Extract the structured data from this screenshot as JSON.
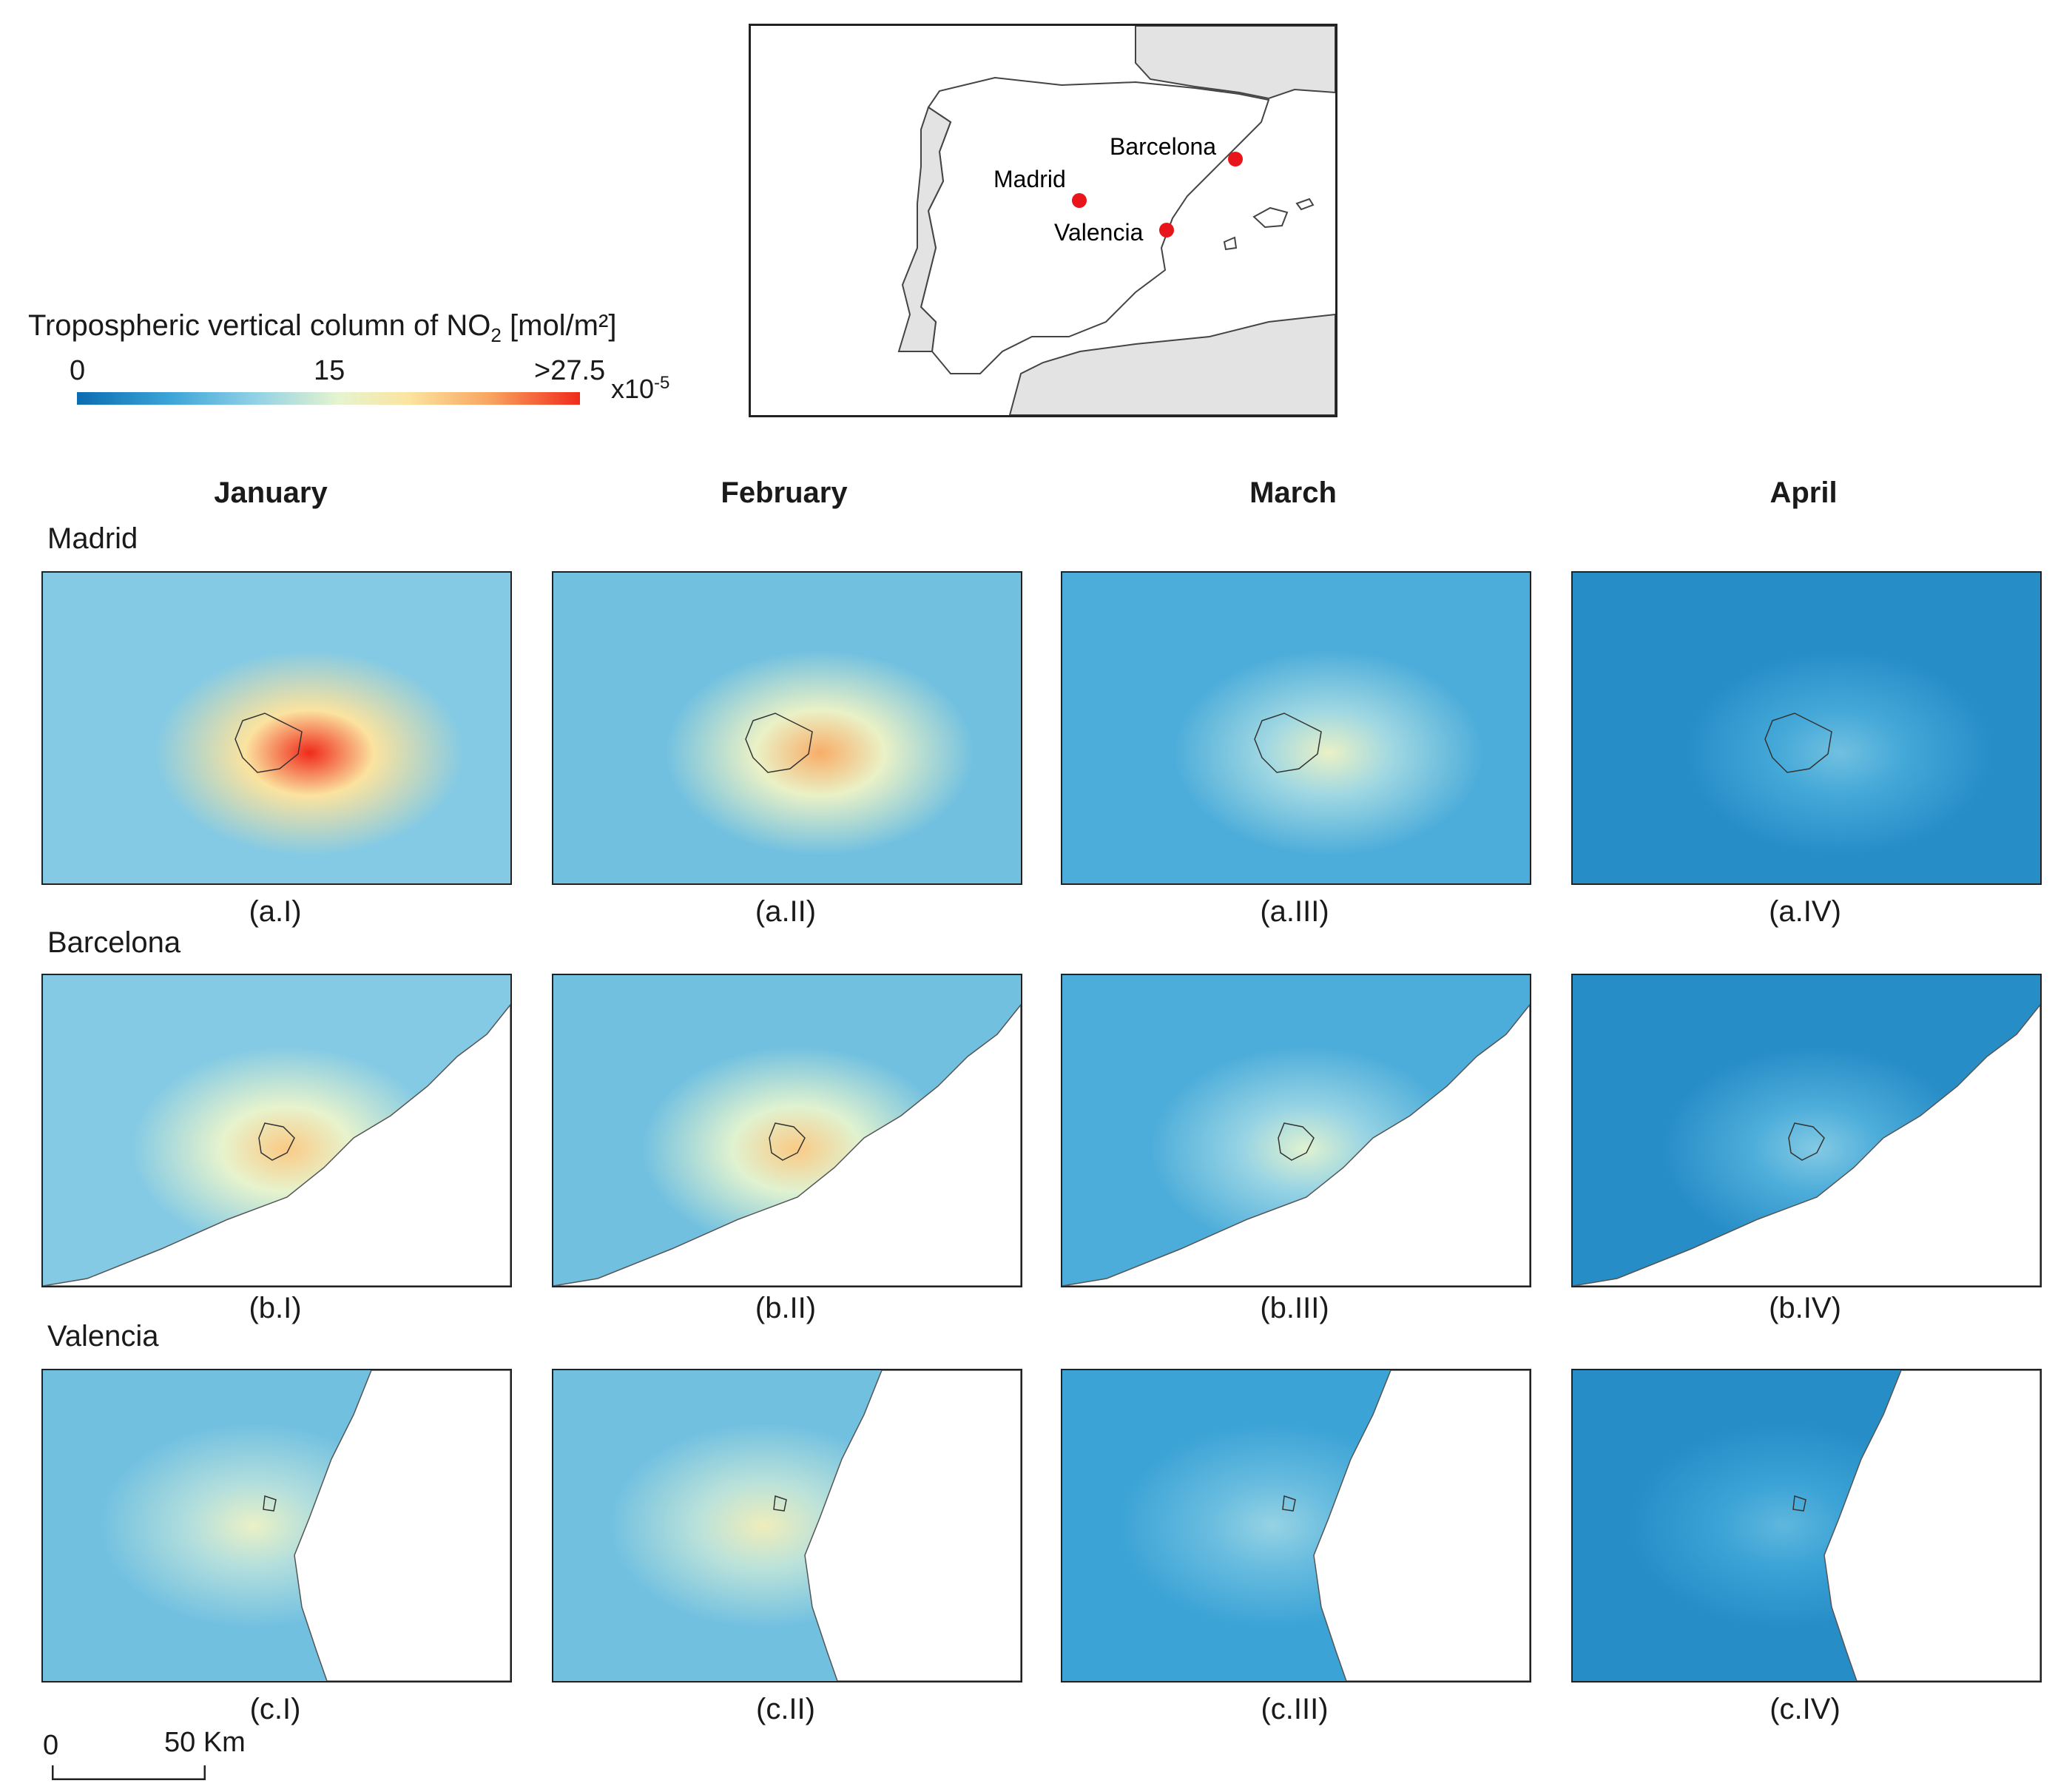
{
  "legend": {
    "title_main": "Tropospheric vertical column of NO",
    "title_sub": "2",
    "title_unit": " [mol/m²]",
    "tick_min": "0",
    "tick_mid": "15",
    "tick_max": ">27.5",
    "multiplier_base": "x10",
    "multiplier_exp": "-5"
  },
  "inset": {
    "cities": [
      {
        "name": "Barcelona",
        "color": "#e8161b"
      },
      {
        "name": "Madrid",
        "color": "#e8161b"
      },
      {
        "name": "Valencia",
        "color": "#e8161b"
      }
    ]
  },
  "columns": [
    "January",
    "February",
    "March",
    "April"
  ],
  "rows": [
    {
      "city": "Madrid",
      "panels": [
        {
          "label": "(a.I)",
          "no2_peak_e5": 27.5,
          "no2_background_e5": 9
        },
        {
          "label": "(a.II)",
          "no2_peak_e5": 22,
          "no2_background_e5": 8
        },
        {
          "label": "(a.III)",
          "no2_peak_e5": 15,
          "no2_background_e5": 6
        },
        {
          "label": "(a.IV)",
          "no2_peak_e5": 8,
          "no2_background_e5": 3
        }
      ]
    },
    {
      "city": "Barcelona",
      "panels": [
        {
          "label": "(b.I)",
          "no2_peak_e5": 20,
          "no2_background_e5": 9
        },
        {
          "label": "(b.II)",
          "no2_peak_e5": 20,
          "no2_background_e5": 8
        },
        {
          "label": "(b.III)",
          "no2_peak_e5": 14,
          "no2_background_e5": 6
        },
        {
          "label": "(b.IV)",
          "no2_peak_e5": 9,
          "no2_background_e5": 3
        }
      ]
    },
    {
      "city": "Valencia",
      "panels": [
        {
          "label": "(c.I)",
          "no2_peak_e5": 15,
          "no2_background_e5": 8
        },
        {
          "label": "(c.II)",
          "no2_peak_e5": 16,
          "no2_background_e5": 8
        },
        {
          "label": "(c.III)",
          "no2_peak_e5": 10,
          "no2_background_e5": 5
        },
        {
          "label": "(c.IV)",
          "no2_peak_e5": 7,
          "no2_background_e5": 3
        }
      ]
    }
  ],
  "scale_bar": {
    "start": "0",
    "end": "50 Km"
  }
}
